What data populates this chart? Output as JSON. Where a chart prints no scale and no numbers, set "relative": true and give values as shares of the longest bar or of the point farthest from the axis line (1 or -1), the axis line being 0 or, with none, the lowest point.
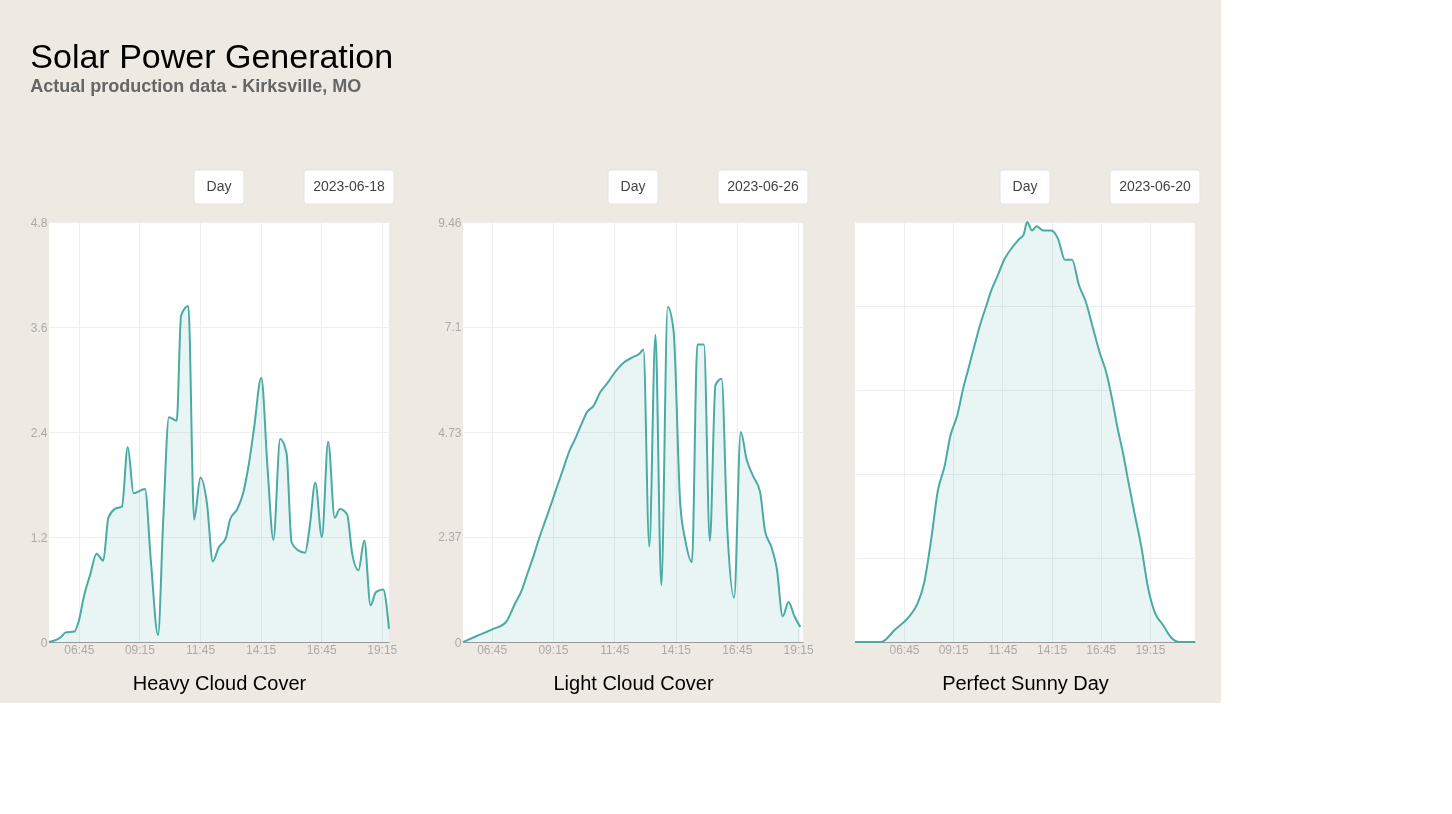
{
  "chart_data": [
    {
      "type": "area",
      "title": "Solar Power Generation",
      "subtitle": "Actual production data - Kirksville, MO",
      "xlabel": "Heavy Cloud Cover",
      "annotations": [
        "Day",
        "2023-06-18"
      ],
      "grid": true,
      "marker": "none",
      "line_style": "solid",
      "xlim": [
        5.52,
        19.55
      ],
      "xticks": [
        {
          "value": 6.75,
          "label": "06:45"
        },
        {
          "value": 9.25,
          "label": "09:15"
        },
        {
          "value": 11.75,
          "label": "11:45"
        },
        {
          "value": 14.25,
          "label": "14:15"
        },
        {
          "value": 16.75,
          "label": "16:45"
        },
        {
          "value": 19.25,
          "label": "19:15"
        }
      ],
      "ylim": [
        0,
        4.8
      ],
      "yticks": [
        0,
        1.2,
        2.4,
        3.6,
        4.8
      ],
      "series": [
        {
          "color": "#4aaba3",
          "x": [
            5.52,
            6.03,
            6.21,
            6.57,
            6.75,
            6.96,
            7.22,
            7.48,
            7.76,
            7.97,
            8.23,
            8.53,
            8.77,
            9.01,
            9.48,
            9.72,
            10.02,
            10.23,
            10.47,
            10.79,
            10.97,
            11.27,
            11.51,
            11.77,
            12.04,
            12.28,
            12.52,
            12.82,
            12.99,
            13.29,
            13.53,
            13.77,
            13.98,
            14.28,
            14.54,
            14.78,
            15.06,
            15.32,
            15.53,
            15.79,
            16.09,
            16.27,
            16.51,
            16.78,
            17.04,
            17.31,
            17.52,
            17.82,
            18.03,
            18.29,
            18.53,
            18.79,
            19.01,
            19.31,
            19.55
          ],
          "values": [
            0,
            0.06,
            0.11,
            0.12,
            0.24,
            0.52,
            0.77,
            1.01,
            0.93,
            1.42,
            1.52,
            1.55,
            2.23,
            1.7,
            1.75,
            0.94,
            0.08,
            1.37,
            2.57,
            2.53,
            3.73,
            3.84,
            1.4,
            1.88,
            1.58,
            0.92,
            1.08,
            1.19,
            1.4,
            1.52,
            1.7,
            2.04,
            2.44,
            3.02,
            1.98,
            1.17,
            2.32,
            2.16,
            1.14,
            1.05,
            1.02,
            1.3,
            1.82,
            1.2,
            2.29,
            1.42,
            1.52,
            1.46,
            1.01,
            0.82,
            1.16,
            0.42,
            0.57,
            0.6,
            0.15
          ]
        }
      ]
    },
    {
      "type": "area",
      "xlabel": "Light Cloud Cover",
      "annotations": [
        "Day",
        "2023-06-26"
      ],
      "grid": true,
      "marker": "none",
      "line_style": "solid",
      "xlim": [
        5.58,
        19.45
      ],
      "xticks": [
        {
          "value": 6.75,
          "label": "06:45"
        },
        {
          "value": 9.25,
          "label": "09:15"
        },
        {
          "value": 11.75,
          "label": "11:45"
        },
        {
          "value": 14.25,
          "label": "14:15"
        },
        {
          "value": 16.75,
          "label": "16:45"
        },
        {
          "value": 19.25,
          "label": "19:15"
        }
      ],
      "ylim": [
        0,
        9.46
      ],
      "yticks": [
        0,
        2.37,
        4.73,
        7.1,
        9.46
      ],
      "series": [
        {
          "color": "#4aaba3",
          "x": [
            5.58,
            6.12,
            6.75,
            7.32,
            7.68,
            7.98,
            8.22,
            8.46,
            8.7,
            8.95,
            9.19,
            9.43,
            9.67,
            9.91,
            10.15,
            10.39,
            10.63,
            10.93,
            11.17,
            11.47,
            11.77,
            12.13,
            12.49,
            12.79,
            12.94,
            13.18,
            13.43,
            13.67,
            13.93,
            14.17,
            14.44,
            14.65,
            14.92,
            15.14,
            15.41,
            15.65,
            15.88,
            16.13,
            16.36,
            16.64,
            16.91,
            17.15,
            17.42,
            17.7,
            17.9,
            18.16,
            18.38,
            18.62,
            18.86,
            19.1,
            19.34
          ],
          "values": [
            0,
            0.13,
            0.28,
            0.44,
            0.84,
            1.17,
            1.56,
            1.94,
            2.36,
            2.75,
            3.13,
            3.52,
            3.9,
            4.29,
            4.57,
            4.88,
            5.17,
            5.34,
            5.62,
            5.83,
            6.07,
            6.29,
            6.41,
            6.5,
            6.59,
            2.15,
            6.92,
            1.28,
            7.55,
            7.01,
            3.13,
            2.29,
            1.8,
            6.7,
            6.7,
            2.28,
            5.79,
            5.93,
            2.57,
            1.0,
            4.73,
            4.11,
            3.73,
            3.38,
            2.5,
            2.14,
            1.66,
            0.58,
            0.9,
            0.58,
            0.34
          ]
        }
      ]
    },
    {
      "type": "area",
      "xlabel": "Perfect Sunny Day",
      "annotations": [
        "Day",
        "2023-06-20"
      ],
      "grid": true,
      "marker": "none",
      "line_style": "solid",
      "relative": true,
      "xlim": [
        4.26,
        21.54
      ],
      "xticks": [
        {
          "value": 6.75,
          "label": "06:45"
        },
        {
          "value": 9.25,
          "label": "09:15"
        },
        {
          "value": 11.75,
          "label": "11:45"
        },
        {
          "value": 14.25,
          "label": "14:15"
        },
        {
          "value": 16.75,
          "label": "16:45"
        },
        {
          "value": 19.25,
          "label": "19:15"
        }
      ],
      "series": [
        {
          "color": "#4aaba3",
          "x": [
            4.26,
            5.59,
            6.3,
            7.0,
            7.42,
            7.77,
            8.12,
            8.47,
            8.82,
            9.1,
            9.46,
            9.74,
            10.02,
            10.3,
            10.65,
            10.93,
            11.21,
            11.49,
            11.84,
            12.26,
            12.62,
            12.83,
            13.01,
            13.25,
            13.49,
            13.81,
            14.23,
            14.58,
            14.93,
            15.29,
            15.64,
            15.99,
            16.34,
            16.69,
            17.04,
            17.32,
            17.6,
            17.88,
            18.16,
            18.45,
            18.8,
            19.15,
            19.5,
            19.92,
            20.34,
            20.76,
            21.54
          ],
          "values": [
            0,
            0,
            0.03,
            0.06,
            0.09,
            0.14,
            0.24,
            0.36,
            0.42,
            0.49,
            0.54,
            0.6,
            0.65,
            0.7,
            0.76,
            0.8,
            0.84,
            0.87,
            0.91,
            0.94,
            0.96,
            0.97,
            1.0,
            0.98,
            0.99,
            0.98,
            0.98,
            0.96,
            0.91,
            0.91,
            0.85,
            0.81,
            0.75,
            0.69,
            0.64,
            0.58,
            0.51,
            0.45,
            0.38,
            0.31,
            0.23,
            0.13,
            0.07,
            0.04,
            0.01,
            0,
            0
          ]
        }
      ]
    }
  ]
}
